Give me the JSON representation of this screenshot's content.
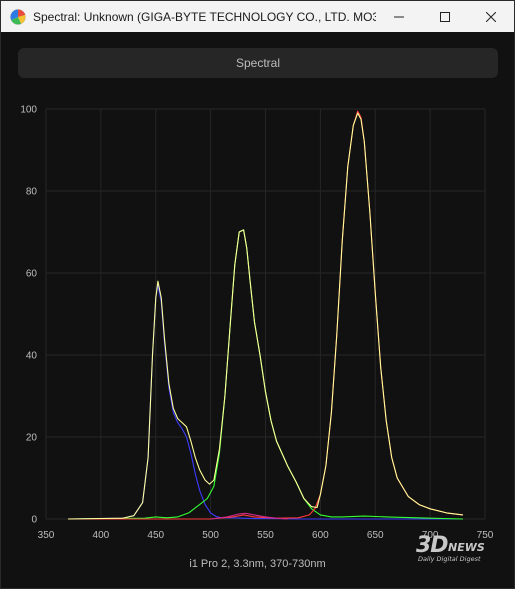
{
  "window": {
    "title": "Spectral: Unknown (GIGA-BYTE TECHNOLOGY CO., LTD. MO32...",
    "app_icon": "spectral-app-icon",
    "controls": [
      "minimize-icon",
      "maximize-icon",
      "close-icon"
    ]
  },
  "tabs": [
    {
      "label": "Spectral"
    }
  ],
  "footer": {
    "label": "i1 Pro 2, 3.3nm, 370-730nm"
  },
  "watermark": {
    "big": "3D",
    "news": "NEWS",
    "sub": "Daily Digital Digest"
  },
  "chart_data": {
    "type": "line",
    "title": "",
    "xlabel": "",
    "ylabel": "",
    "xlim": [
      350,
      750
    ],
    "ylim": [
      0,
      100
    ],
    "xticks": [
      350,
      400,
      450,
      500,
      550,
      600,
      650,
      700,
      750
    ],
    "yticks": [
      0,
      20,
      40,
      60,
      80,
      100
    ],
    "grid": true,
    "legend": "none",
    "series": [
      {
        "color": "#3b3bff",
        "x": [
          370,
          420,
          430,
          438,
          443,
          447,
          450,
          452,
          455,
          458,
          462,
          466,
          470,
          474,
          478,
          482,
          486,
          490,
          495,
          500,
          505,
          510,
          520,
          530,
          540,
          560,
          580,
          600,
          650,
          700,
          730
        ],
        "y": [
          0,
          0.2,
          0.8,
          4,
          15,
          40,
          54,
          57,
          53,
          43,
          32,
          26,
          23.5,
          22,
          20,
          16,
          11,
          7,
          3.5,
          1.5,
          0.6,
          0.3,
          0.3,
          0.2,
          0.1,
          0.1,
          0,
          0,
          0,
          0,
          0
        ]
      },
      {
        "color": "#33ff33",
        "x": [
          370,
          440,
          450,
          460,
          470,
          480,
          490,
          497,
          503,
          508,
          513,
          518,
          522,
          526,
          530,
          533,
          536,
          540,
          545,
          550,
          555,
          560,
          565,
          570,
          578,
          585,
          592,
          600,
          610,
          620,
          640,
          660,
          700,
          730
        ],
        "y": [
          0,
          0.2,
          0.5,
          0.3,
          0.5,
          1.5,
          3.5,
          5,
          8,
          16,
          30,
          48,
          62,
          70,
          70.5,
          66,
          58,
          48,
          40,
          31,
          24,
          19,
          16,
          13,
          9,
          5,
          2.5,
          1,
          0.5,
          0.5,
          0.7,
          0.5,
          0.2,
          0
        ]
      },
      {
        "color": "#ff3b3b",
        "x": [
          370,
          500,
          520,
          530,
          540,
          560,
          580,
          590,
          595,
          600,
          605,
          610,
          615,
          620,
          625,
          630,
          634,
          637,
          640,
          645,
          650,
          655,
          660,
          665,
          670,
          680,
          690,
          700,
          715,
          730
        ],
        "y": [
          0,
          0,
          0.5,
          1,
          0.5,
          0.2,
          0.3,
          1,
          2.5,
          6,
          13,
          26,
          45,
          68,
          86,
          96,
          99.5,
          98,
          92,
          75,
          55,
          37,
          24,
          15,
          10,
          5.5,
          3.5,
          2.5,
          1.5,
          1
        ]
      },
      {
        "color": "#ffff99",
        "x": [
          370,
          420,
          430,
          438,
          443,
          447,
          450,
          452,
          455,
          458,
          462,
          466,
          470,
          474,
          478,
          482,
          486,
          490,
          495,
          499,
          503,
          508,
          513,
          518,
          522,
          526,
          530,
          533,
          536,
          540,
          545,
          550,
          555,
          560,
          565,
          570,
          578,
          585,
          592,
          597,
          600,
          605,
          610,
          615,
          620,
          625,
          630,
          634,
          637,
          640,
          645,
          650,
          655,
          660,
          665,
          670,
          680,
          690,
          700,
          715,
          730
        ],
        "y": [
          0,
          0.2,
          0.8,
          4,
          15,
          40,
          54,
          58,
          54,
          44,
          33,
          27,
          24.5,
          23.5,
          22.5,
          19,
          15,
          12,
          9.5,
          8.5,
          9.5,
          17,
          30,
          48,
          62,
          70,
          70.5,
          66,
          58,
          48,
          40,
          31,
          24,
          19,
          16,
          13,
          9,
          5,
          3,
          2.8,
          6,
          13,
          26,
          45,
          68,
          86,
          96,
          99,
          97.5,
          92,
          75,
          55,
          37,
          24,
          15,
          10,
          5.5,
          3.5,
          2.5,
          1.5,
          1
        ]
      },
      {
        "color": "#cc2b8a",
        "x": [
          500,
          515,
          525,
          532,
          540,
          550,
          560,
          570
        ],
        "y": [
          0,
          0.5,
          1.2,
          1.4,
          1,
          0.5,
          0.2,
          0
        ]
      }
    ]
  }
}
